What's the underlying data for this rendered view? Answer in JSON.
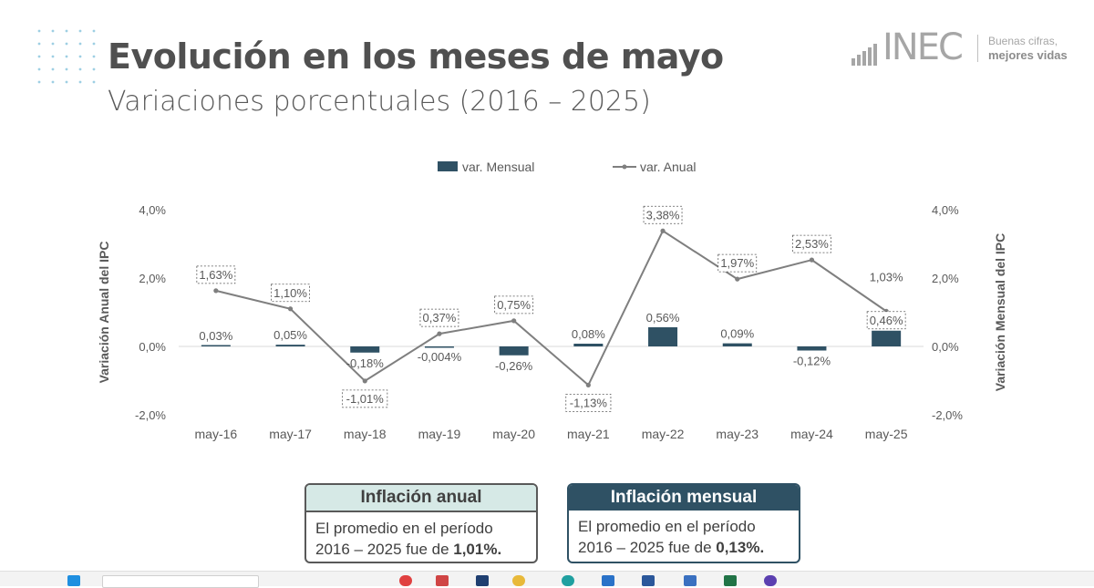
{
  "header": {
    "title": "Evolución en los meses de mayo",
    "subtitle": "Variaciones porcentuales (2016 – 2025)"
  },
  "logo": {
    "name": "INEC",
    "tagline_1": "Buenas cifras,",
    "tagline_2": "mejores vidas"
  },
  "chart_data": {
    "type": "bar+line",
    "categories": [
      "may-16",
      "may-17",
      "may-18",
      "may-19",
      "may-20",
      "may-21",
      "may-22",
      "may-23",
      "may-24",
      "may-25"
    ],
    "series": [
      {
        "name": "var. Mensual",
        "type": "bar",
        "axis": "right",
        "values": [
          0.03,
          0.05,
          -0.18,
          -0.004,
          -0.26,
          0.08,
          0.56,
          0.09,
          -0.12,
          0.46
        ],
        "labels": [
          "0,03%",
          "0,05%",
          "-0,18%",
          "-0,004%",
          "-0,26%",
          "0,08%",
          "0,56%",
          "0,09%",
          "-0,12%",
          "0,46%"
        ]
      },
      {
        "name": "var. Anual",
        "type": "line",
        "axis": "left",
        "values": [
          1.63,
          1.1,
          -1.01,
          0.37,
          0.75,
          -1.13,
          3.38,
          1.97,
          2.53,
          1.03
        ],
        "labels": [
          "1,63%",
          "1,10%",
          "-1,01%",
          "0,37%",
          "0,75%",
          "-1,13%",
          "3,38%",
          "1,97%",
          "2,53%",
          "1,03%"
        ]
      }
    ],
    "ylabel_left": "Variación Anual del IPC",
    "ylabel_right": "Variación Mensual del IPC",
    "ylim_left": [
      -2,
      4
    ],
    "ylim_right": [
      -2,
      4
    ],
    "yticks": [
      "-2,0%",
      "0,0%",
      "2,0%",
      "4,0%"
    ],
    "ytick_values": [
      -2,
      0,
      2,
      4
    ],
    "legend_position": "top",
    "grid": false,
    "colors": {
      "bar": "#2f5164",
      "line": "#7f7f7f",
      "axis_text": "#595959"
    }
  },
  "boxes": {
    "annual": {
      "heading": "Inflación anual",
      "line1": "El promedio en el período",
      "line2_prefix": "2016 – 2025 fue de ",
      "value": "1,01%."
    },
    "monthly": {
      "heading": "Inflación mensual",
      "line1": "El promedio en el período",
      "line2_prefix": "2016 – 2025 fue de ",
      "value": "0,13%."
    }
  }
}
